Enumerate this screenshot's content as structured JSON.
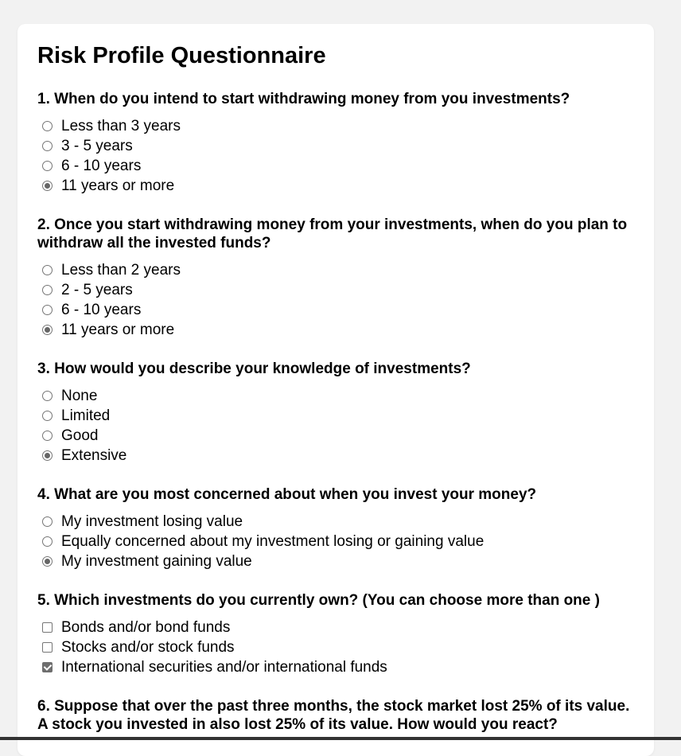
{
  "title": "Risk Profile Questionnaire",
  "questions": [
    {
      "text": "1. When do you intend to start withdrawing money from you investments?",
      "options": [
        {
          "label": "Less than 3 years",
          "checked": false
        },
        {
          "label": "3 - 5 years",
          "checked": false
        },
        {
          "label": "6 - 10 years",
          "checked": false
        },
        {
          "label": "11 years or more",
          "checked": true
        }
      ]
    },
    {
      "text": "2. Once you start withdrawing money from your investments, when do you plan to withdraw all the invested funds?",
      "options": [
        {
          "label": "Less than 2 years",
          "checked": false
        },
        {
          "label": "2 - 5 years",
          "checked": false
        },
        {
          "label": "6 - 10 years",
          "checked": false
        },
        {
          "label": "11 years or more",
          "checked": true
        }
      ]
    },
    {
      "text": "3. How would you describe your knowledge of investments?",
      "options": [
        {
          "label": "None",
          "checked": false
        },
        {
          "label": "Limited",
          "checked": false
        },
        {
          "label": "Good",
          "checked": false
        },
        {
          "label": "Extensive",
          "checked": true
        }
      ]
    },
    {
      "text": "4. What are you most concerned about when you invest your money?",
      "options": [
        {
          "label": "My investment losing value",
          "checked": false
        },
        {
          "label": "Equally concerned about my investment losing or gaining value",
          "checked": false
        },
        {
          "label": "My investment gaining value",
          "checked": true
        }
      ]
    },
    {
      "text": "5. Which investments do you currently own? (You can choose more than one )",
      "options": [
        {
          "label": "Bonds and/or bond funds",
          "checked": false
        },
        {
          "label": "Stocks and/or stock funds",
          "checked": false
        },
        {
          "label": "International securities and/or international funds",
          "checked": true
        }
      ]
    },
    {
      "text": "6. Suppose that over the past three months, the stock market lost 25% of its value. A stock you invested in also lost 25% of its value. How would you react?"
    }
  ]
}
